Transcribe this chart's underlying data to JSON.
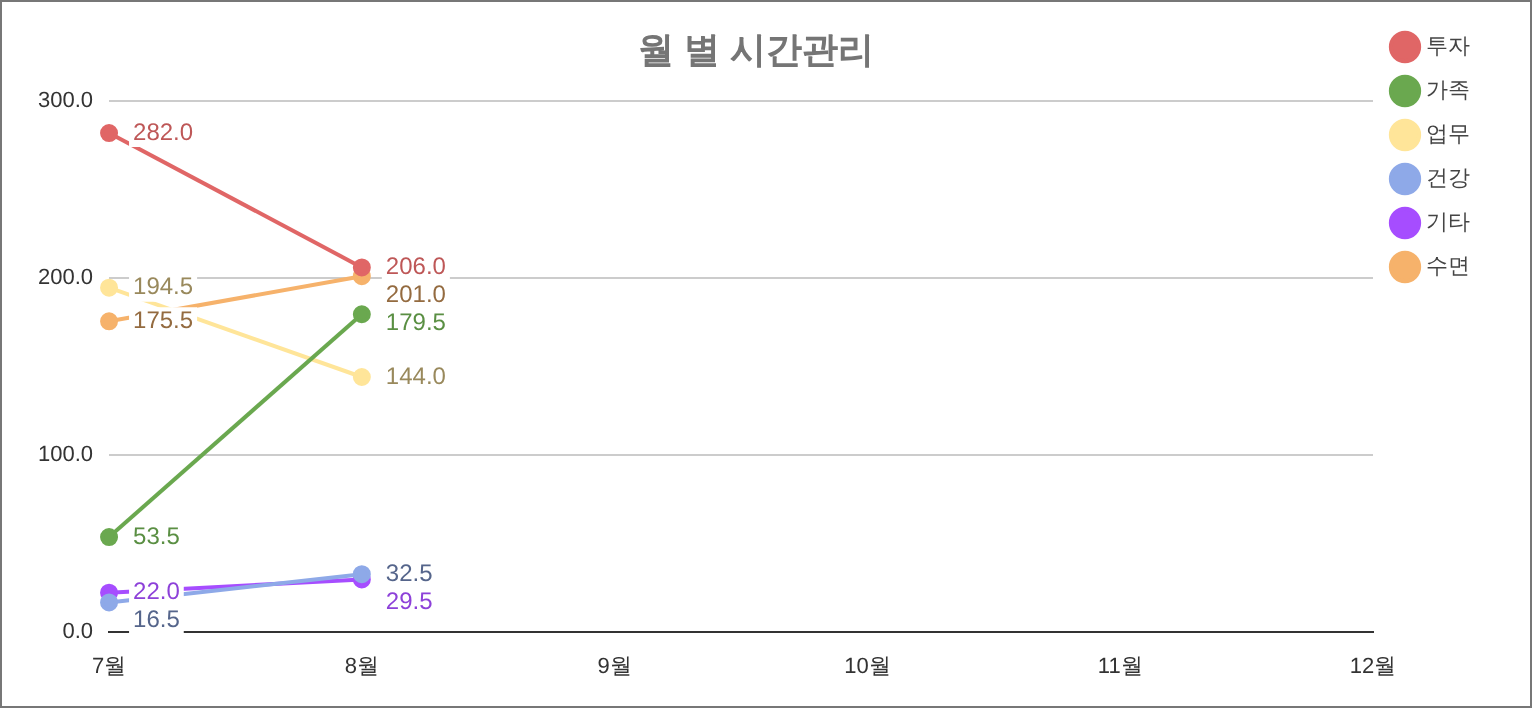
{
  "chart_data": {
    "type": "line",
    "title": "월 별 시간관리",
    "categories": [
      "7월",
      "8월",
      "9월",
      "10월",
      "11월",
      "12월"
    ],
    "series": [
      {
        "name": "투자",
        "color": "#e06666",
        "values": [
          282.0,
          206.0,
          null,
          null,
          null,
          null
        ],
        "value_labels": [
          "282.0",
          "206.0",
          null,
          null,
          null,
          null
        ]
      },
      {
        "name": "가족",
        "color": "#6aa84f",
        "values": [
          53.5,
          179.5,
          null,
          null,
          null,
          null
        ],
        "value_labels": [
          "53.5",
          "179.5",
          null,
          null,
          null,
          null
        ]
      },
      {
        "name": "업무",
        "color": "#ffe599",
        "values": [
          194.5,
          144.0,
          null,
          null,
          null,
          null
        ],
        "value_labels": [
          "194.5",
          "144.0",
          null,
          null,
          null,
          null
        ]
      },
      {
        "name": "건강",
        "color": "#8ea9e8",
        "values": [
          16.5,
          32.5,
          null,
          null,
          null,
          null
        ],
        "value_labels": [
          "16.5",
          "32.5",
          null,
          null,
          null,
          null
        ]
      },
      {
        "name": "기타",
        "color": "#a64dff",
        "values": [
          22.0,
          29.5,
          null,
          null,
          null,
          null
        ],
        "value_labels": [
          "22.0",
          "29.5",
          null,
          null,
          null,
          null
        ]
      },
      {
        "name": "수면",
        "color": "#f6b26b",
        "values": [
          175.5,
          201.0,
          null,
          null,
          null,
          null
        ],
        "value_labels": [
          "175.5",
          "201.0",
          null,
          null,
          null,
          null
        ]
      }
    ],
    "ylim": [
      0,
      300
    ],
    "yticks": [
      {
        "value": 0,
        "label": "0.0"
      },
      {
        "value": 100,
        "label": "100.0"
      },
      {
        "value": 200,
        "label": "200.0"
      },
      {
        "value": 300,
        "label": "300.0"
      }
    ],
    "grid": "y",
    "legend": "right",
    "marker": "circle",
    "line_style": "solid"
  }
}
